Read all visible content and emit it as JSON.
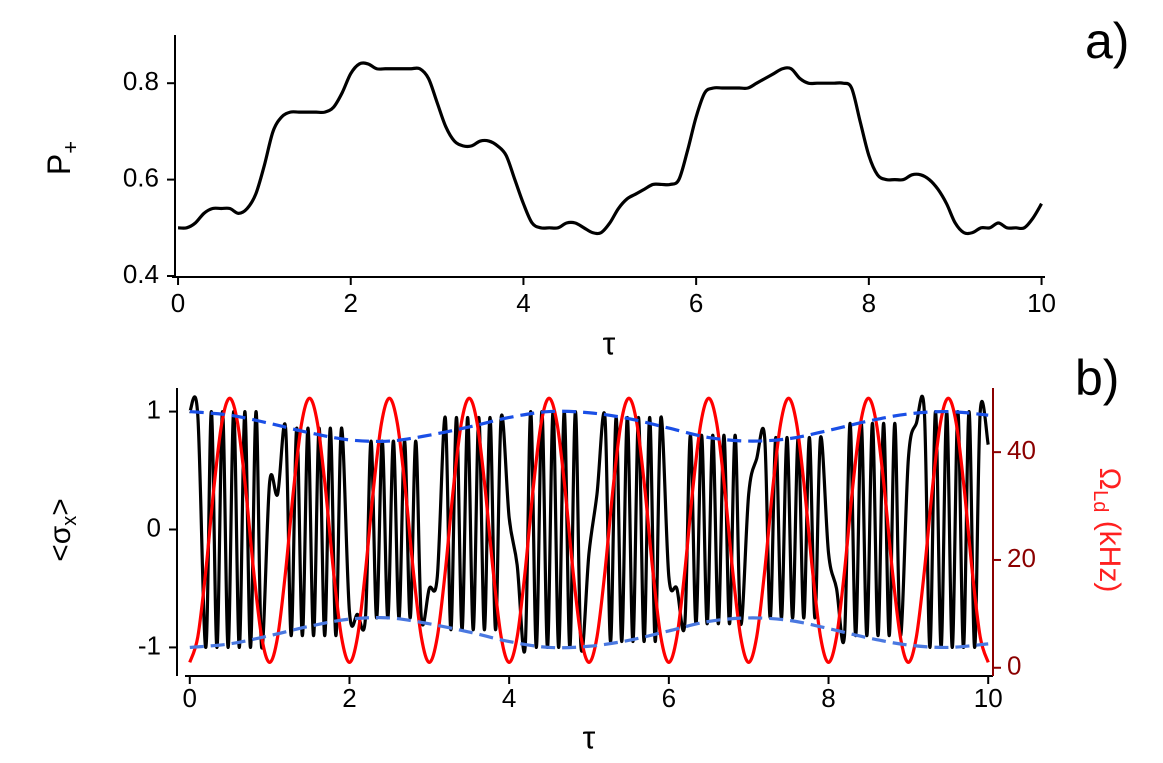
{
  "chart_data": [
    {
      "type": "line",
      "panel_label": "a)",
      "x_label": "τ",
      "y_label": [
        "P",
        "+"
      ],
      "xlim": [
        -0.07,
        10.04
      ],
      "ylim": [
        0.4,
        0.9
      ],
      "xticks": [
        0,
        2,
        4,
        6,
        8,
        10
      ],
      "yticks": [
        0.4,
        0.6,
        0.8
      ],
      "series": [
        {
          "color": "#000000",
          "x": [
            0,
            0.1,
            0.2,
            0.3,
            0.4,
            0.5,
            0.6,
            0.7,
            0.8,
            0.9,
            1,
            1.1,
            1.2,
            1.3,
            1.4,
            1.5,
            1.6,
            1.7,
            1.8,
            1.9,
            2,
            2.1,
            2.2,
            2.3,
            2.4,
            2.5,
            2.6,
            2.7,
            2.8,
            2.9,
            3,
            3.1,
            3.2,
            3.3,
            3.4,
            3.5,
            3.6,
            3.7,
            3.8,
            3.9,
            4,
            4.1,
            4.2,
            4.3,
            4.4,
            4.5,
            4.6,
            4.7,
            4.8,
            4.9,
            5,
            5.1,
            5.2,
            5.3,
            5.4,
            5.5,
            5.6,
            5.7,
            5.8,
            5.9,
            6,
            6.1,
            6.2,
            6.3,
            6.4,
            6.5,
            6.6,
            6.7,
            6.8,
            6.9,
            7,
            7.1,
            7.2,
            7.3,
            7.4,
            7.5,
            7.6,
            7.7,
            7.8,
            7.9,
            8,
            8.1,
            8.2,
            8.3,
            8.4,
            8.5,
            8.6,
            8.7,
            8.8,
            8.9,
            9,
            9.1,
            9.2,
            9.3,
            9.4,
            9.5,
            9.6,
            9.7,
            9.8,
            9.9,
            10
          ],
          "values": [
            0.5,
            0.5,
            0.51,
            0.53,
            0.54,
            0.54,
            0.54,
            0.53,
            0.54,
            0.57,
            0.63,
            0.7,
            0.73,
            0.74,
            0.74,
            0.74,
            0.74,
            0.74,
            0.75,
            0.78,
            0.82,
            0.84,
            0.84,
            0.83,
            0.83,
            0.83,
            0.83,
            0.83,
            0.83,
            0.81,
            0.76,
            0.71,
            0.68,
            0.67,
            0.67,
            0.68,
            0.68,
            0.67,
            0.65,
            0.6,
            0.55,
            0.51,
            0.5,
            0.5,
            0.5,
            0.51,
            0.51,
            0.5,
            0.49,
            0.49,
            0.51,
            0.54,
            0.56,
            0.57,
            0.58,
            0.59,
            0.59,
            0.59,
            0.6,
            0.66,
            0.73,
            0.78,
            0.79,
            0.79,
            0.79,
            0.79,
            0.79,
            0.8,
            0.81,
            0.82,
            0.83,
            0.83,
            0.81,
            0.8,
            0.8,
            0.8,
            0.8,
            0.8,
            0.79,
            0.72,
            0.65,
            0.61,
            0.6,
            0.6,
            0.6,
            0.61,
            0.61,
            0.6,
            0.58,
            0.55,
            0.51,
            0.49,
            0.49,
            0.5,
            0.5,
            0.51,
            0.5,
            0.5,
            0.5,
            0.52,
            0.55
          ]
        }
      ]
    },
    {
      "type": "line",
      "panel_label": "b)",
      "x_label": "τ",
      "y_label": [
        "<σ",
        "x",
        ">"
      ],
      "y2_label": [
        "Ω",
        "Ld",
        " (kHz)"
      ],
      "xlim": [
        -0.06,
        10.06
      ],
      "ylim": [
        -1.2,
        1.2
      ],
      "y2lim": [
        -0.6,
        51.9
      ],
      "xticks": [
        0,
        2,
        4,
        6,
        8,
        10
      ],
      "yticks": [
        -1,
        0,
        1
      ],
      "y2ticks": [
        0,
        20,
        40
      ],
      "y2_color": "#8b0000",
      "y2_label_color": "#ff2020",
      "series": [
        {
          "color": "#000000",
          "x": [
            0,
            0.1,
            0.2,
            0.27,
            0.34,
            0.41,
            0.48,
            0.55,
            0.62,
            0.69,
            0.76,
            0.83,
            0.9,
            1,
            1.1,
            1.2,
            1.27,
            1.34,
            1.41,
            1.48,
            1.55,
            1.62,
            1.69,
            1.76,
            1.83,
            1.9,
            2,
            2.1,
            2.2,
            2.27,
            2.34,
            2.41,
            2.48,
            2.55,
            2.62,
            2.69,
            2.76,
            2.83,
            2.9,
            3,
            3.1,
            3.2,
            3.27,
            3.34,
            3.41,
            3.48,
            3.55,
            3.62,
            3.69,
            3.76,
            3.83,
            3.9,
            4,
            4.1,
            4.2,
            4.27,
            4.34,
            4.41,
            4.48,
            4.55,
            4.62,
            4.69,
            4.76,
            4.83,
            4.9,
            5,
            5.1,
            5.2,
            5.27,
            5.34,
            5.41,
            5.48,
            5.55,
            5.62,
            5.69,
            5.76,
            5.83,
            5.9,
            6,
            6.1,
            6.2,
            6.27,
            6.34,
            6.41,
            6.48,
            6.55,
            6.62,
            6.69,
            6.76,
            6.83,
            6.9,
            7,
            7.1,
            7.2,
            7.27,
            7.34,
            7.41,
            7.48,
            7.55,
            7.62,
            7.69,
            7.76,
            7.83,
            7.9,
            8,
            8.1,
            8.2,
            8.27,
            8.34,
            8.41,
            8.48,
            8.55,
            8.62,
            8.69,
            8.76,
            8.83,
            8.9,
            9,
            9.1,
            9.2,
            9.27,
            9.34,
            9.41,
            9.48,
            9.55,
            9.62,
            9.69,
            9.76,
            9.83,
            9.9,
            10
          ],
          "values": [
            1,
            0.97,
            -1,
            1,
            -1,
            1,
            -1,
            1,
            -1,
            1,
            -1,
            1,
            -1,
            0.4,
            0.3,
            0.86,
            -0.9,
            0.86,
            -0.9,
            0.86,
            -0.9,
            0.86,
            -0.9,
            0.86,
            -0.9,
            0.86,
            -0.7,
            -0.72,
            -0.75,
            0.75,
            -0.75,
            0.75,
            -0.75,
            0.75,
            -0.75,
            0.75,
            -0.75,
            0.75,
            -0.75,
            -0.5,
            -0.4,
            0.95,
            -0.85,
            0.95,
            -0.85,
            0.95,
            -0.85,
            0.95,
            -0.85,
            0.95,
            -0.85,
            0.95,
            0.1,
            -0.3,
            -1,
            1,
            -1,
            1,
            -1,
            1,
            -1,
            1,
            -1,
            1,
            -1,
            -0.2,
            0.3,
            0.95,
            -0.95,
            0.95,
            -0.95,
            0.95,
            -0.95,
            0.95,
            -0.95,
            0.95,
            -0.95,
            0.95,
            -0.4,
            -0.5,
            -0.8,
            0.8,
            -0.8,
            0.8,
            -0.8,
            0.8,
            -0.8,
            0.8,
            -0.8,
            0.8,
            -0.8,
            0.3,
            0.6,
            0.78,
            -0.75,
            0.78,
            -0.75,
            0.78,
            -0.75,
            0.78,
            -0.75,
            0.78,
            -0.75,
            0.78,
            -0.2,
            -0.5,
            -0.9,
            0.9,
            -0.9,
            0.9,
            -0.9,
            0.9,
            -0.9,
            0.9,
            -0.9,
            0.9,
            -0.9,
            0.6,
            0.9,
            1,
            -1,
            1,
            -1,
            1,
            -1,
            1,
            -1,
            1,
            -1,
            1,
            0.72
          ]
        },
        {
          "color": "#ff0000",
          "axis": "y2",
          "x": [
            0,
            0.1,
            0.2,
            0.3,
            0.4,
            0.5,
            0.6,
            0.7,
            0.8,
            0.9,
            1,
            1.1,
            1.2,
            1.3,
            1.4,
            1.5,
            1.6,
            1.7,
            1.8,
            1.9,
            2,
            2.1,
            2.2,
            2.3,
            2.4,
            2.5,
            2.6,
            2.7,
            2.8,
            2.9,
            3,
            3.1,
            3.2,
            3.3,
            3.4,
            3.5,
            3.6,
            3.7,
            3.8,
            3.9,
            4,
            4.1,
            4.2,
            4.3,
            4.4,
            4.5,
            4.6,
            4.7,
            4.8,
            4.9,
            5,
            5.1,
            5.2,
            5.3,
            5.4,
            5.5,
            5.6,
            5.7,
            5.8,
            5.9,
            6,
            6.1,
            6.2,
            6.3,
            6.4,
            6.5,
            6.6,
            6.7,
            6.8,
            6.9,
            7,
            7.1,
            7.2,
            7.3,
            7.4,
            7.5,
            7.6,
            7.7,
            7.8,
            7.9,
            8,
            8.1,
            8.2,
            8.3,
            8.4,
            8.5,
            8.6,
            8.7,
            8.8,
            8.9,
            9,
            9.1,
            9.2,
            9.3,
            9.4,
            9.5,
            9.6,
            9.7,
            9.8,
            9.9,
            10
          ],
          "values": [
            1,
            5.7,
            17.9,
            33.1,
            45.3,
            50,
            45.3,
            33.1,
            17.9,
            5.7,
            1,
            5.7,
            17.9,
            33.1,
            45.3,
            50,
            45.3,
            33.1,
            17.9,
            5.7,
            1,
            5.7,
            17.9,
            33.1,
            45.3,
            50,
            45.3,
            33.1,
            17.9,
            5.7,
            1,
            5.7,
            17.9,
            33.1,
            45.3,
            50,
            45.3,
            33.1,
            17.9,
            5.7,
            1,
            5.7,
            17.9,
            33.1,
            45.3,
            50,
            45.3,
            33.1,
            17.9,
            5.7,
            1,
            5.7,
            17.9,
            33.1,
            45.3,
            50,
            45.3,
            33.1,
            17.9,
            5.7,
            1,
            5.7,
            17.9,
            33.1,
            45.3,
            50,
            45.3,
            33.1,
            17.9,
            5.7,
            1,
            5.7,
            17.9,
            33.1,
            45.3,
            50,
            45.3,
            33.1,
            17.9,
            5.7,
            1,
            5.7,
            17.9,
            33.1,
            45.3,
            50,
            45.3,
            33.1,
            17.9,
            5.7,
            1,
            5.7,
            17.9,
            33.1,
            45.3,
            50,
            45.3,
            33.1,
            17.9,
            5.7,
            1
          ]
        },
        {
          "color": "#1a4fe6",
          "dashed": true,
          "x": [
            0,
            0.5,
            1,
            1.5,
            2,
            2.5,
            3,
            3.5,
            4,
            4.5,
            5,
            5.5,
            6,
            6.5,
            7,
            7.5,
            8,
            8.5,
            9,
            9.5,
            10
          ],
          "values": [
            1,
            0.97,
            0.9,
            0.82,
            0.76,
            0.75,
            0.8,
            0.87,
            0.95,
            1,
            0.99,
            0.94,
            0.86,
            0.78,
            0.75,
            0.77,
            0.84,
            0.92,
            0.98,
            1,
            0.97
          ]
        },
        {
          "color": "#4a78e0",
          "dashed": true,
          "x": [
            0,
            0.5,
            1,
            1.5,
            2,
            2.5,
            3,
            3.5,
            4,
            4.5,
            5,
            5.5,
            6,
            6.5,
            7,
            7.5,
            8,
            8.5,
            9,
            9.5,
            10
          ],
          "values": [
            -1,
            -0.97,
            -0.9,
            -0.82,
            -0.76,
            -0.75,
            -0.8,
            -0.87,
            -0.95,
            -1,
            -0.99,
            -0.94,
            -0.86,
            -0.78,
            -0.75,
            -0.77,
            -0.84,
            -0.92,
            -0.98,
            -1,
            -0.97
          ]
        }
      ]
    }
  ]
}
